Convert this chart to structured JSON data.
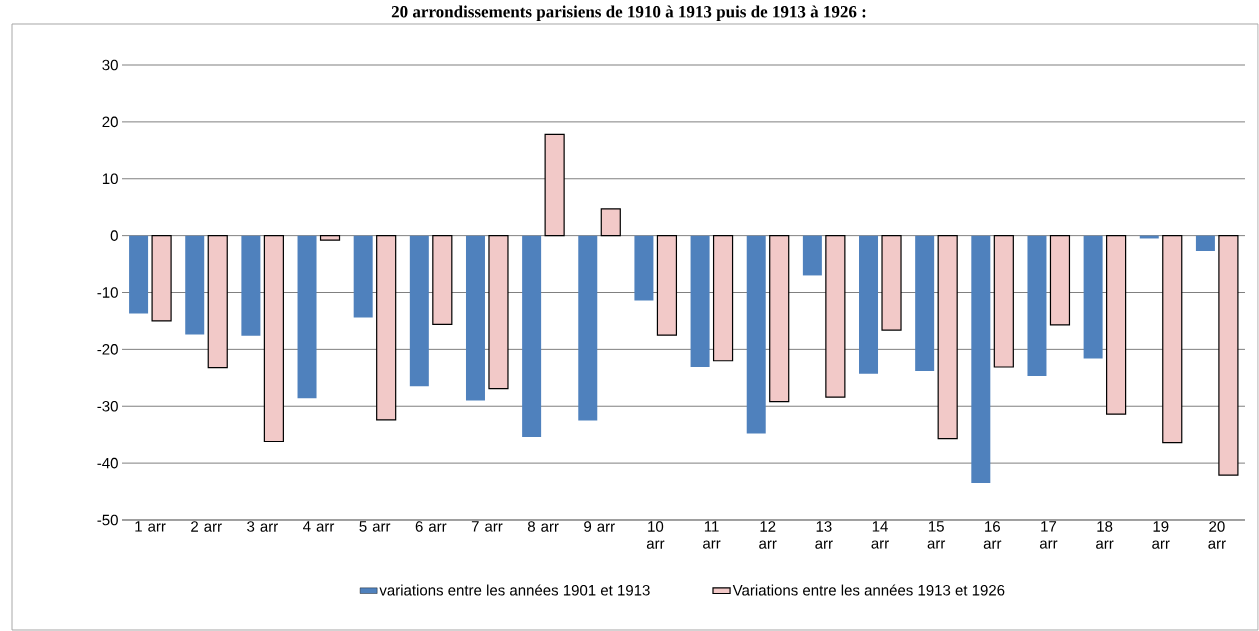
{
  "chart_data": {
    "type": "bar",
    "title": "20 arrondissements parisiens de 1910 à 1913 puis de 1913 à 1926 :",
    "categories": [
      "1 arr",
      "2 arr",
      "3 arr",
      "4 arr",
      "5 arr",
      "6 arr",
      "7 arr",
      "8 arr",
      "9 arr",
      "10 arr",
      "11 arr",
      "12 arr",
      "13 arr",
      "14 arr",
      "15 arr",
      "16 arr",
      "17 arr",
      "18 arr",
      "19 arr",
      "20 arr"
    ],
    "series": [
      {
        "name": "variations entre les années 1901 et 1913",
        "color": "#4f81bd",
        "values": [
          -13.7,
          -17.4,
          -17.6,
          -28.6,
          -14.4,
          -26.5,
          -29,
          -35.4,
          -32.5,
          -11.4,
          -23.1,
          -34.8,
          -7,
          -24.3,
          -23.8,
          -43.5,
          -24.7,
          -21.6,
          -0.5,
          -2.7
        ]
      },
      {
        "name": "Variations entre les années 1913 et 1926",
        "color": "#f2c9c8",
        "values": [
          -15,
          -23.2,
          -36.2,
          -0.8,
          -32.4,
          -15.6,
          -26.9,
          17.8,
          4.7,
          -17.5,
          -22,
          -29.2,
          -28.4,
          -16.6,
          -35.7,
          -23.1,
          -15.7,
          -31.4,
          -36.4,
          -42.1
        ]
      }
    ],
    "ylim": [
      -50,
      30
    ],
    "yticks": [
      -50,
      -40,
      -30,
      -20,
      -10,
      0,
      10,
      20,
      30
    ],
    "grid": "y",
    "legend": "bottom"
  }
}
